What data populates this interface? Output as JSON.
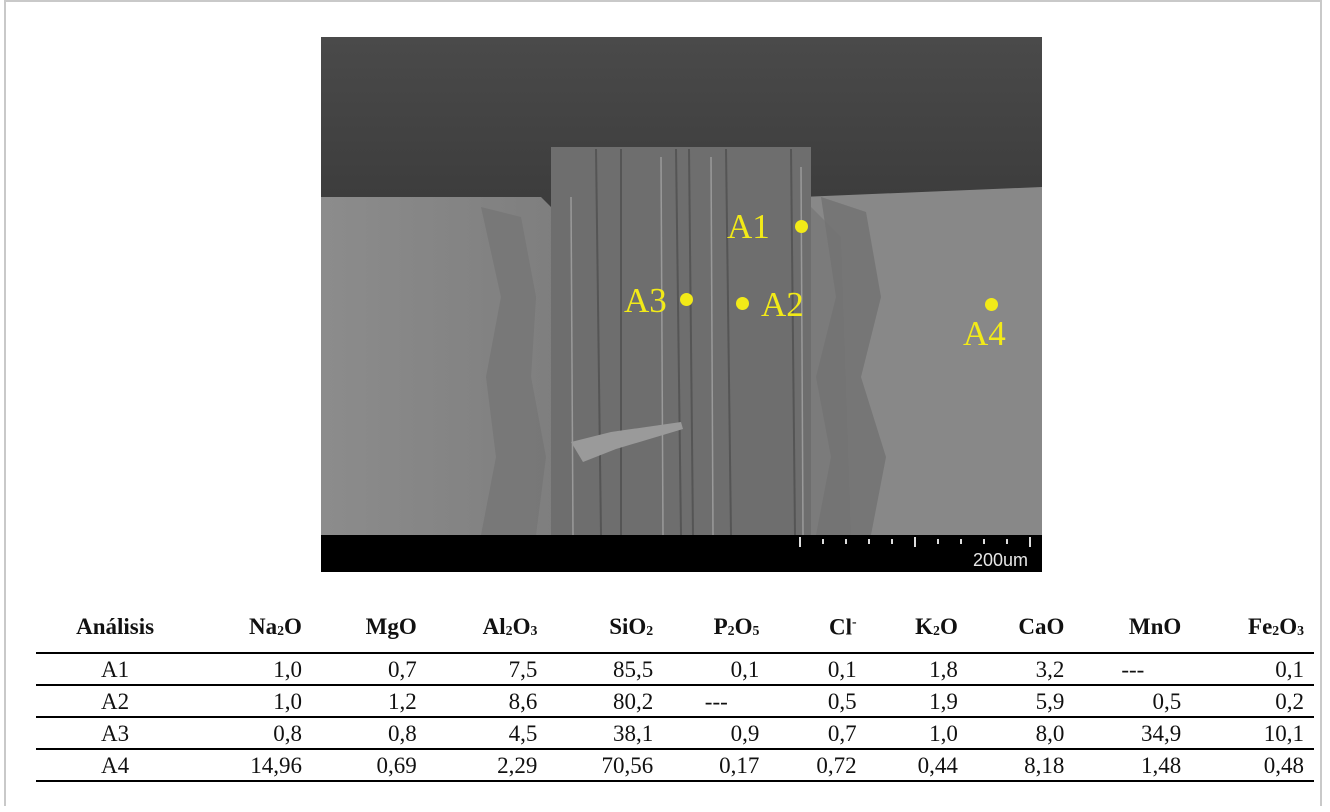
{
  "figure": {
    "scale_label": "200um",
    "points": [
      {
        "label": "A1"
      },
      {
        "label": "A2"
      },
      {
        "label": "A3"
      },
      {
        "label": "A4"
      }
    ]
  },
  "table": {
    "headers": {
      "analisis": "Análisis",
      "na2o": {
        "a": "Na",
        "sub": "2",
        "b": "O"
      },
      "mgo": {
        "a": "MgO",
        "sub": "",
        "b": ""
      },
      "al2o3": {
        "a": "Al",
        "sub": "2",
        "b": "O",
        "sub2": "3"
      },
      "sio2": {
        "a": "SiO",
        "sub": "2",
        "b": ""
      },
      "p2o5": {
        "a": "P",
        "sub": "2",
        "b": "O",
        "sub2": "5"
      },
      "cl": {
        "a": "Cl",
        "sup": "-"
      },
      "k2o": {
        "a": "K",
        "sub": "2",
        "b": "O"
      },
      "cao": {
        "a": "CaO"
      },
      "mno": {
        "a": "MnO"
      },
      "fe2o3": {
        "a": "Fe",
        "sub": "2",
        "b": "O",
        "sub2": "3"
      }
    },
    "rows": [
      {
        "name": "A1",
        "values": [
          "1,0",
          "0,7",
          "7,5",
          "85,5",
          "0,1",
          "0,1",
          "1,8",
          "3,2",
          "---",
          "0,1"
        ]
      },
      {
        "name": "A2",
        "values": [
          "1,0",
          "1,2",
          "8,6",
          "80,2",
          "---",
          "0,5",
          "1,9",
          "5,9",
          "0,5",
          "0,2"
        ]
      },
      {
        "name": "A3",
        "values": [
          "0,8",
          "0,8",
          "4,5",
          "38,1",
          "0,9",
          "0,7",
          "1,0",
          "8,0",
          "34,9",
          "10,1"
        ]
      },
      {
        "name": "A4",
        "values": [
          "14,96",
          "0,69",
          "2,29",
          "70,56",
          "0,17",
          "0,72",
          "0,44",
          "8,18",
          "1,48",
          "0,48"
        ]
      }
    ]
  },
  "colors": {
    "marker": "#f2ea18",
    "frame": "#c9c9c9"
  }
}
